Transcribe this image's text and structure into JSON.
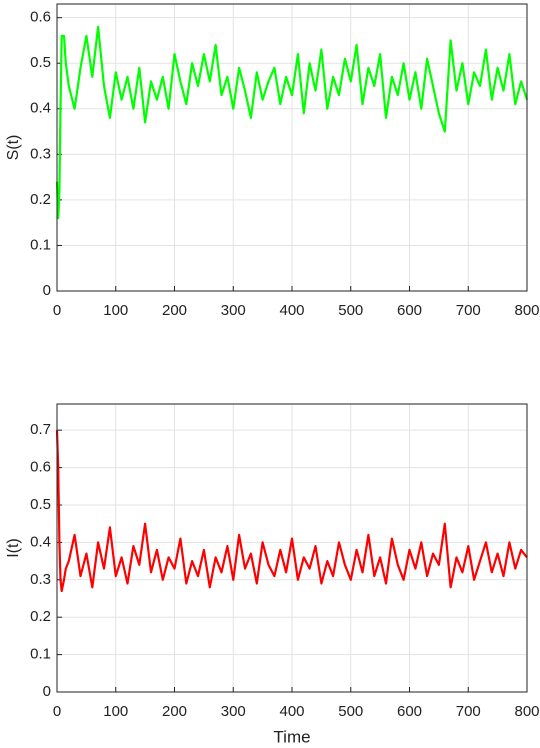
{
  "chart_data": [
    {
      "type": "line",
      "ylabel": "S(t)",
      "color": "#00ff00",
      "grid": true,
      "xlim": [
        0,
        800
      ],
      "xticks": [
        0,
        100,
        200,
        300,
        400,
        500,
        600,
        700,
        800
      ],
      "ylim": [
        0,
        0.63
      ],
      "yticks": [
        0,
        0.1,
        0.2,
        0.3,
        0.4,
        0.5,
        0.6
      ],
      "x": [
        0,
        2,
        4,
        6,
        8,
        12,
        15,
        20,
        30,
        40,
        50,
        60,
        70,
        80,
        90,
        100,
        110,
        120,
        130,
        140,
        150,
        160,
        170,
        180,
        190,
        200,
        210,
        220,
        230,
        240,
        250,
        260,
        270,
        280,
        290,
        300,
        310,
        320,
        330,
        340,
        350,
        360,
        370,
        380,
        390,
        400,
        410,
        420,
        430,
        440,
        450,
        460,
        470,
        480,
        490,
        500,
        510,
        520,
        530,
        540,
        550,
        560,
        570,
        580,
        590,
        600,
        610,
        620,
        630,
        640,
        650,
        660,
        670,
        680,
        690,
        700,
        710,
        720,
        730,
        740,
        750,
        760,
        770,
        780,
        790,
        800
      ],
      "values": [
        0.24,
        0.16,
        0.22,
        0.4,
        0.56,
        0.56,
        0.5,
        0.45,
        0.4,
        0.49,
        0.56,
        0.47,
        0.58,
        0.45,
        0.38,
        0.48,
        0.42,
        0.47,
        0.4,
        0.49,
        0.37,
        0.46,
        0.42,
        0.47,
        0.4,
        0.52,
        0.46,
        0.41,
        0.5,
        0.45,
        0.52,
        0.46,
        0.54,
        0.43,
        0.47,
        0.4,
        0.49,
        0.44,
        0.38,
        0.48,
        0.42,
        0.46,
        0.49,
        0.41,
        0.47,
        0.43,
        0.52,
        0.39,
        0.5,
        0.44,
        0.53,
        0.4,
        0.47,
        0.43,
        0.51,
        0.46,
        0.54,
        0.41,
        0.49,
        0.45,
        0.52,
        0.38,
        0.47,
        0.43,
        0.5,
        0.42,
        0.48,
        0.4,
        0.51,
        0.45,
        0.39,
        0.35,
        0.55,
        0.44,
        0.5,
        0.41,
        0.48,
        0.45,
        0.53,
        0.42,
        0.49,
        0.44,
        0.52,
        0.41,
        0.46,
        0.42
      ]
    },
    {
      "type": "line",
      "ylabel": "I(t)",
      "xlabel": "Time",
      "color": "#ff0000",
      "grid": true,
      "xlim": [
        0,
        800
      ],
      "xticks": [
        0,
        100,
        200,
        300,
        400,
        500,
        600,
        700,
        800
      ],
      "ylim": [
        0,
        0.77
      ],
      "yticks": [
        0,
        0.1,
        0.2,
        0.3,
        0.4,
        0.5,
        0.6,
        0.7
      ],
      "x": [
        0,
        2,
        4,
        6,
        8,
        12,
        15,
        20,
        30,
        40,
        50,
        60,
        70,
        80,
        90,
        100,
        110,
        120,
        130,
        140,
        150,
        160,
        170,
        180,
        190,
        200,
        210,
        220,
        230,
        240,
        250,
        260,
        270,
        280,
        290,
        300,
        310,
        320,
        330,
        340,
        350,
        360,
        370,
        380,
        390,
        400,
        410,
        420,
        430,
        440,
        450,
        460,
        470,
        480,
        490,
        500,
        510,
        520,
        530,
        540,
        550,
        560,
        570,
        580,
        590,
        600,
        610,
        620,
        630,
        640,
        650,
        660,
        670,
        680,
        690,
        700,
        710,
        720,
        730,
        740,
        750,
        760,
        770,
        780,
        790,
        800
      ],
      "values": [
        0.7,
        0.6,
        0.4,
        0.3,
        0.27,
        0.3,
        0.33,
        0.35,
        0.42,
        0.31,
        0.37,
        0.28,
        0.4,
        0.33,
        0.44,
        0.31,
        0.36,
        0.29,
        0.39,
        0.34,
        0.45,
        0.32,
        0.38,
        0.3,
        0.36,
        0.33,
        0.41,
        0.29,
        0.35,
        0.31,
        0.38,
        0.28,
        0.36,
        0.32,
        0.39,
        0.3,
        0.42,
        0.33,
        0.37,
        0.29,
        0.4,
        0.34,
        0.31,
        0.38,
        0.32,
        0.41,
        0.3,
        0.36,
        0.33,
        0.39,
        0.29,
        0.35,
        0.31,
        0.4,
        0.34,
        0.3,
        0.38,
        0.32,
        0.42,
        0.31,
        0.36,
        0.29,
        0.41,
        0.34,
        0.3,
        0.38,
        0.33,
        0.4,
        0.31,
        0.37,
        0.34,
        0.45,
        0.28,
        0.36,
        0.32,
        0.39,
        0.3,
        0.35,
        0.4,
        0.32,
        0.37,
        0.31,
        0.4,
        0.33,
        0.38,
        0.36
      ]
    }
  ]
}
